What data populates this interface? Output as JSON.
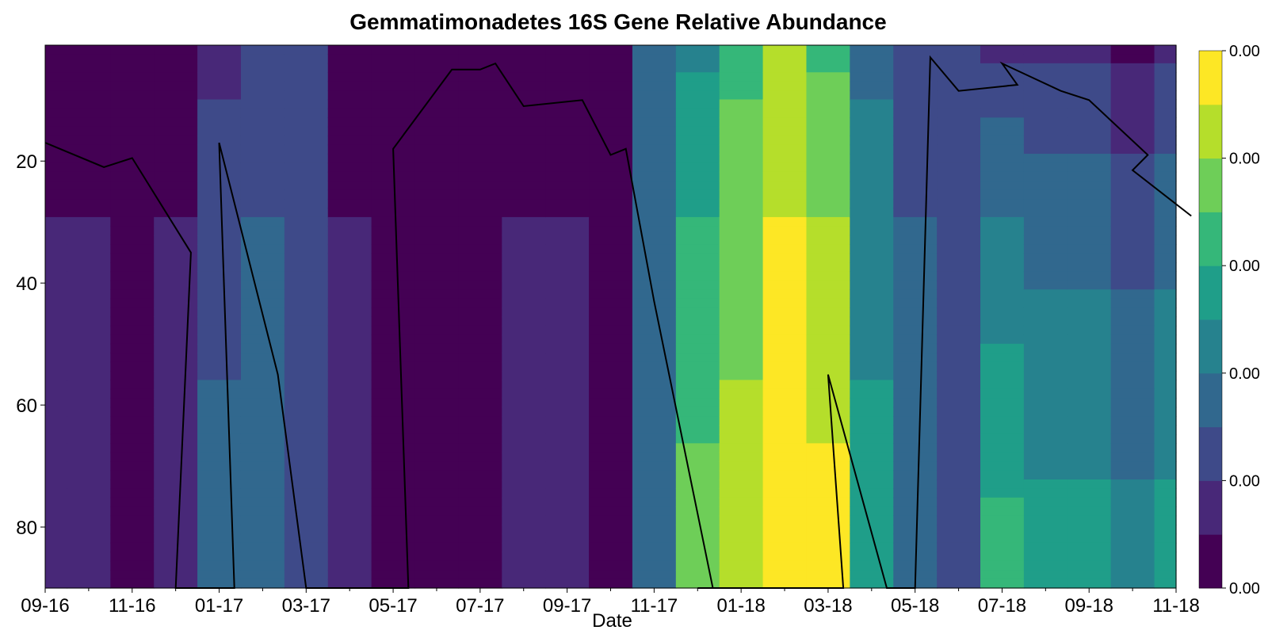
{
  "chart_data": {
    "type": "contour",
    "title": "Gemmatimonadetes 16S Gene Relative Abundance",
    "xlabel": "Date",
    "ylabel": "",
    "y_axis_inverted": true,
    "x_tick_labels": [
      "09-16",
      "11-16",
      "01-17",
      "03-17",
      "05-17",
      "07-17",
      "09-17",
      "11-17",
      "01-18",
      "03-18",
      "05-18",
      "07-18",
      "09-18",
      "11-18"
    ],
    "y_ticks": [
      20,
      40,
      60,
      80
    ],
    "ylim": [
      1,
      90
    ],
    "colorbar": {
      "tick_labels": [
        "0.00",
        "0.00",
        "0.00",
        "0.00",
        "0.00",
        "0.00"
      ],
      "levels": 10,
      "colors": [
        "#440154",
        "#482878",
        "#3e4a89",
        "#31688e",
        "#26828e",
        "#1f9e89",
        "#35b779",
        "#6ece58",
        "#b5de2b",
        "#fde725"
      ]
    },
    "abundance_profile": {
      "dates": [
        "09-16",
        "10-16",
        "11-16",
        "12-16",
        "01-17",
        "02-17",
        "03-17",
        "04-17",
        "05-17",
        "06-17",
        "07-17",
        "08-17",
        "09-17",
        "10-17",
        "11-17",
        "12-17",
        "01-18",
        "02-18",
        "03-18",
        "04-18",
        "05-18",
        "06-18",
        "07-18",
        "08-18",
        "09-18",
        "10-18",
        "11-18"
      ],
      "surface_level": [
        1,
        1,
        1,
        1,
        2,
        3,
        3,
        1,
        1,
        1,
        1,
        1,
        1,
        1,
        4,
        5,
        7,
        9,
        7,
        4,
        3,
        3,
        2,
        2,
        2,
        1,
        2
      ],
      "deep_level": [
        2,
        2,
        1,
        2,
        4,
        4,
        3,
        2,
        1,
        1,
        1,
        2,
        2,
        1,
        4,
        8,
        9,
        10,
        10,
        6,
        4,
        3,
        7,
        6,
        6,
        5,
        6
      ]
    },
    "line_series": {
      "dates": [
        "09-16",
        "10-16",
        "11-16",
        "12-16",
        "12-16",
        "01-17",
        "01-17",
        "02-17",
        "03-17",
        "04-17",
        "04-17",
        "05-17",
        "05-17",
        "06-17",
        "07-17",
        "07-17",
        "08-17",
        "09-17",
        "10-17",
        "10-17",
        "11-17",
        "12-17",
        "12-17",
        "01-18",
        "02-18",
        "03-18",
        "03-18",
        "04-18",
        "05-18",
        "05-18",
        "06-18",
        "07-18",
        "07-18",
        "08-18",
        "09-18",
        "10-18",
        "10-18",
        "11-18"
      ],
      "depth": [
        17,
        21,
        19.5,
        35,
        90,
        90,
        17,
        55,
        90,
        90,
        90,
        90,
        18,
        5,
        5,
        4,
        11,
        10,
        19,
        18,
        43,
        90,
        90,
        90,
        90,
        90,
        55,
        90,
        90,
        3,
        8.5,
        7.5,
        4,
        8.5,
        10,
        19,
        21.5,
        29
      ]
    }
  }
}
